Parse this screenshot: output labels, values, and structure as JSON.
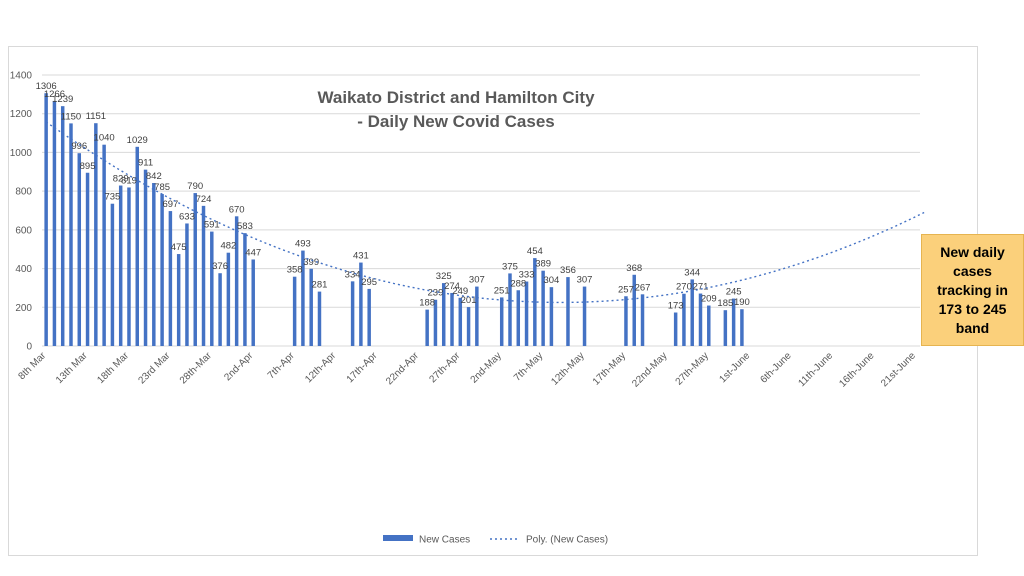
{
  "chart_data": {
    "type": "bar",
    "title_lines": [
      "Waikato District and Hamilton City",
      "- Daily New Covid Cases"
    ],
    "ylim": [
      0,
      1400
    ],
    "yticks": [
      0,
      200,
      400,
      600,
      800,
      1000,
      1200,
      1400
    ],
    "grid": true,
    "x_start_date": "8th Mar",
    "x_days_total": 106,
    "xtick_labels": [
      "8th Mar",
      "13th Mar",
      "18th Mar",
      "23rd Mar",
      "28th-Mar",
      "2nd-Apr",
      "7th-Apr",
      "12th-Apr",
      "17th-Apr",
      "22nd-Apr",
      "27th-Apr",
      "2nd-May",
      "7th-May",
      "12th-May",
      "17th-May",
      "22nd-May",
      "27th-May",
      "1st-June",
      "6th-June",
      "11th-June",
      "16th-June",
      "21st-June"
    ],
    "series": [
      {
        "name": "New Cases",
        "color": "#4472c4",
        "values": [
          1306,
          1266,
          1239,
          1150,
          996,
          895,
          1151,
          1040,
          735,
          829,
          819,
          1029,
          911,
          842,
          785,
          697,
          475,
          633,
          790,
          724,
          591,
          376,
          482,
          670,
          583,
          447,
          358,
          493,
          399,
          281,
          334,
          431,
          295,
          188,
          239,
          325,
          274,
          249,
          201,
          307,
          251,
          375,
          288,
          333,
          454,
          389,
          304,
          356,
          307,
          257,
          368,
          267,
          173,
          270,
          344,
          271,
          209,
          185,
          245,
          190
        ],
        "day_offsets": [
          0,
          1,
          2,
          3,
          4,
          5,
          6,
          7,
          8,
          9,
          10,
          11,
          12,
          13,
          14,
          15,
          16,
          17,
          18,
          19,
          20,
          21,
          22,
          23,
          24,
          25,
          30,
          31,
          32,
          33,
          37,
          38,
          39,
          46,
          47,
          48,
          49,
          50,
          51,
          52,
          55,
          56,
          57,
          58,
          59,
          60,
          61,
          63,
          65,
          70,
          71,
          72,
          76,
          77,
          78,
          79,
          80,
          82,
          83,
          84
        ],
        "labeled": [
          1306,
          1266,
          1239,
          1150,
          996,
          895,
          1151,
          1040,
          735,
          829,
          819,
          1029,
          911,
          842,
          785,
          697,
          475,
          633,
          790,
          724,
          591,
          376,
          482,
          670,
          583,
          447,
          358,
          493,
          399,
          281,
          334,
          431,
          295,
          188,
          239,
          325,
          274,
          249,
          201,
          307,
          251,
          375,
          288,
          333,
          454,
          389,
          304,
          356,
          307,
          257,
          368,
          267,
          173,
          270,
          344,
          271,
          209,
          185,
          245,
          190
        ]
      },
      {
        "name": "Poly. (New Cases)",
        "type": "trendline",
        "style": "dotted",
        "color": "#4472c4"
      }
    ],
    "legend": {
      "position": "bottom",
      "items": [
        "New Cases",
        "Poly. (New Cases)"
      ]
    }
  },
  "callout": {
    "text": "New daily cases tracking in 173 to 245 band"
  }
}
